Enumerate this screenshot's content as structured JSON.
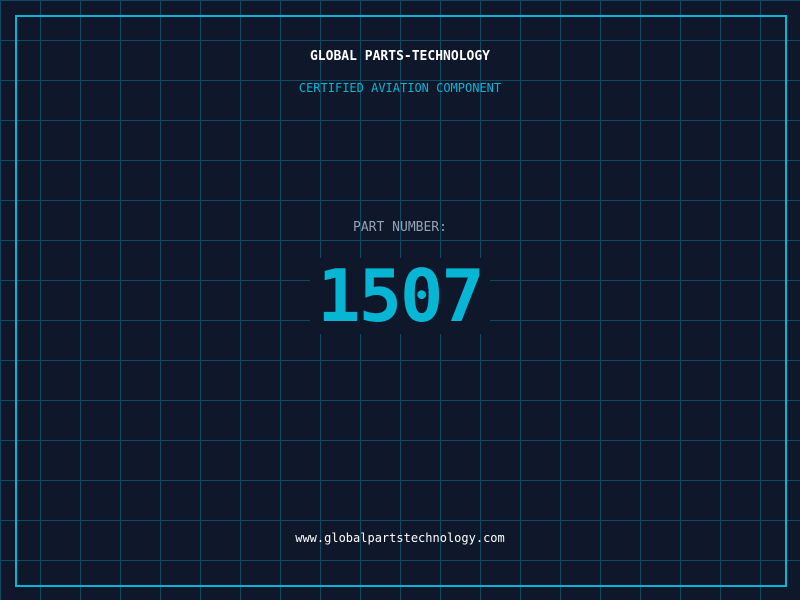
{
  "header": {
    "company": "GLOBAL PARTS-TECHNOLOGY",
    "subtitle": "CERTIFIED AVIATION COMPONENT"
  },
  "part": {
    "label": "PART NUMBER:",
    "number": "1507"
  },
  "footer": {
    "url": "www.globalpartstechnology.com"
  },
  "colors": {
    "background": "#0f172a",
    "accent": "#06b6d4",
    "grid": "#0e4a63"
  }
}
